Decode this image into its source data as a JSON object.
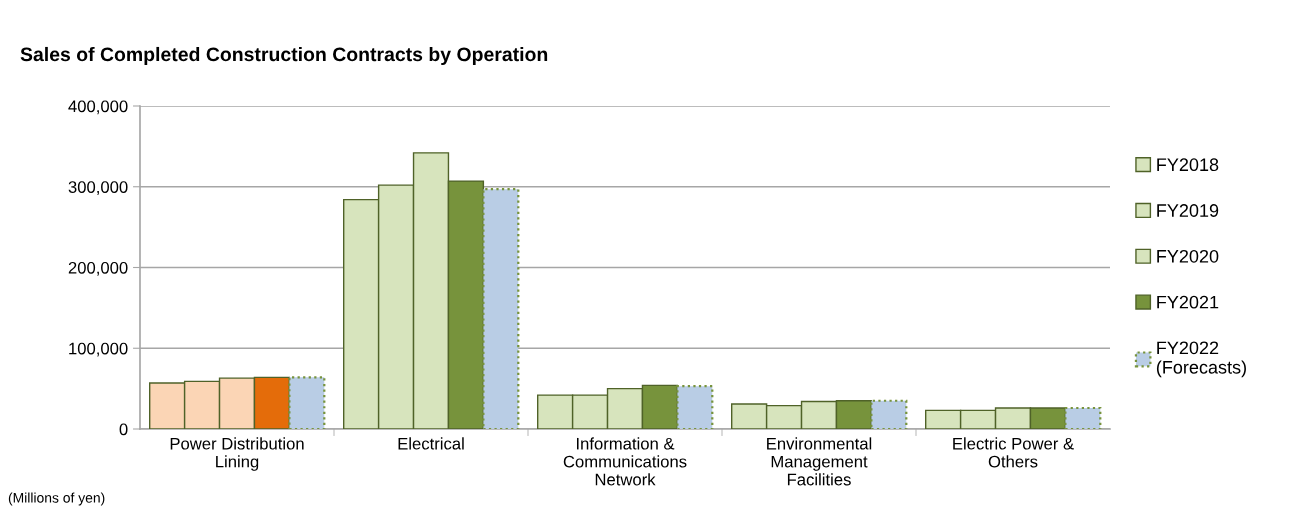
{
  "chart_data": {
    "type": "bar",
    "title": "Sales of Completed Construction Contracts by Operation",
    "categories": [
      "Power Distribution\nLining",
      "Electrical",
      "Information &\nCommunications\nNetwork",
      "Environmental\nManagement\nFacilities",
      "Electric Power &\nOthers"
    ],
    "series": [
      {
        "name": "FY2018",
        "color": "#d7e4bd",
        "colors": [
          "#fbd5b5",
          "#d7e4bd",
          "#d7e4bd",
          "#d7e4bd",
          "#d7e4bd"
        ],
        "values": [
          57000,
          284000,
          42000,
          31000,
          23000
        ]
      },
      {
        "name": "FY2019",
        "color": "#d7e4bd",
        "colors": [
          "#fbd5b5",
          "#d7e4bd",
          "#d7e4bd",
          "#d7e4bd",
          "#d7e4bd"
        ],
        "values": [
          59000,
          302000,
          42000,
          29000,
          23000
        ]
      },
      {
        "name": "FY2020",
        "color": "#d7e4bd",
        "colors": [
          "#fbd5b5",
          "#d7e4bd",
          "#d7e4bd",
          "#d7e4bd",
          "#d7e4bd"
        ],
        "values": [
          63000,
          342000,
          50000,
          34000,
          26000
        ]
      },
      {
        "name": "FY2021",
        "color": "#77933c",
        "colors": [
          "#e46c0a",
          "#77933c",
          "#77933c",
          "#77933c",
          "#77933c"
        ],
        "values": [
          64000,
          307000,
          54000,
          35000,
          26000
        ]
      },
      {
        "name": "FY2022\n(Forecasts)",
        "color": "#b9cde5",
        "line_style": "dotted",
        "values": [
          64000,
          297000,
          53000,
          35000,
          26000
        ]
      }
    ],
    "ylim": [
      0,
      400000
    ],
    "yticks": [
      {
        "value": 0,
        "label": "0"
      },
      {
        "value": 100000,
        "label": "100,000"
      },
      {
        "value": 200000,
        "label": "200,000"
      },
      {
        "value": 300000,
        "label": "300,000"
      },
      {
        "value": 400000,
        "label": "400,000"
      }
    ],
    "grid": "y",
    "legend": "right",
    "annotations": [
      "(Millions of yen)"
    ]
  }
}
